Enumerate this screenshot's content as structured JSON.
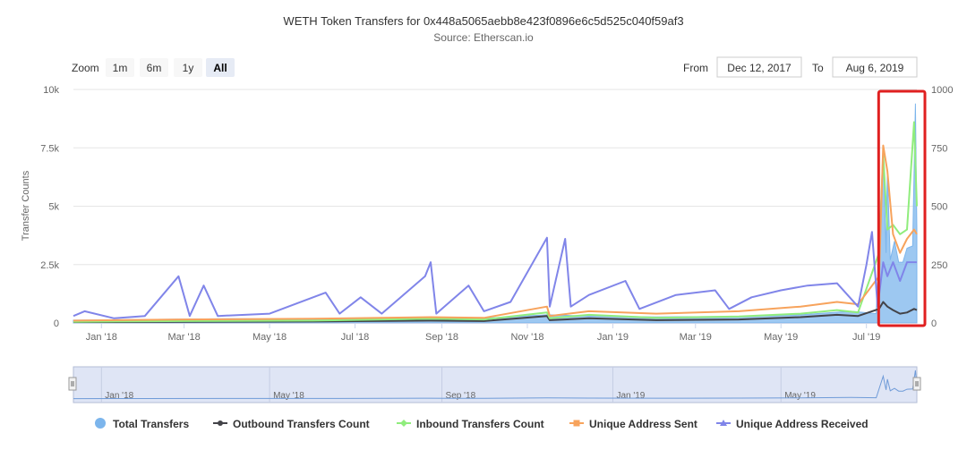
{
  "chart_data": {
    "type": "line",
    "title": "WETH Token Transfers for 0x448a5065aebb8e423f0896e6c5d525c040f59af3",
    "subtitle": "Source: Etherscan.io",
    "ylabel": "Transfer Counts",
    "ylim_left": [
      0,
      10000
    ],
    "ylim_right": [
      0,
      1000
    ],
    "y_ticks_left": [
      "0",
      "2.5k",
      "5k",
      "7.5k",
      "10k"
    ],
    "y_ticks_right": [
      "0",
      "250",
      "500",
      "750",
      "1000"
    ],
    "x_range": [
      "2017-12-12",
      "2019-08-06"
    ],
    "x_ticks": [
      {
        "date": "2018-01-01",
        "label": "Jan '18"
      },
      {
        "date": "2018-03-01",
        "label": "Mar '18"
      },
      {
        "date": "2018-05-01",
        "label": "May '18"
      },
      {
        "date": "2018-07-01",
        "label": "Jul '18"
      },
      {
        "date": "2018-09-01",
        "label": "Sep '18"
      },
      {
        "date": "2018-11-01",
        "label": "Nov '18"
      },
      {
        "date": "2019-01-01",
        "label": "Jan '19"
      },
      {
        "date": "2019-03-01",
        "label": "Mar '19"
      },
      {
        "date": "2019-05-01",
        "label": "May '19"
      },
      {
        "date": "2019-07-01",
        "label": "Jul '19"
      }
    ],
    "grid": true,
    "legend_position": "bottom",
    "series": [
      {
        "name": "Total Transfers",
        "kind": "area",
        "axis": "left",
        "color": "#7cb5ec",
        "points": [
          [
            "2017-12-12",
            120
          ],
          [
            "2018-02-01",
            150
          ],
          [
            "2018-04-01",
            180
          ],
          [
            "2018-06-01",
            170
          ],
          [
            "2018-08-20",
            250
          ],
          [
            "2018-10-01",
            200
          ],
          [
            "2018-11-15",
            350
          ],
          [
            "2018-12-15",
            300
          ],
          [
            "2019-02-01",
            260
          ],
          [
            "2019-04-01",
            280
          ],
          [
            "2019-05-15",
            350
          ],
          [
            "2019-06-20",
            500
          ],
          [
            "2019-07-08",
            400
          ],
          [
            "2019-07-13",
            7500
          ],
          [
            "2019-07-15",
            3000
          ],
          [
            "2019-07-16",
            6500
          ],
          [
            "2019-07-18",
            2700
          ],
          [
            "2019-07-21",
            3500
          ],
          [
            "2019-07-24",
            2600
          ],
          [
            "2019-07-27",
            2600
          ],
          [
            "2019-07-30",
            3200
          ],
          [
            "2019-08-03",
            3300
          ],
          [
            "2019-08-05",
            9400
          ],
          [
            "2019-08-06",
            4000
          ]
        ]
      },
      {
        "name": "Outbound Transfers Count",
        "kind": "line",
        "axis": "right",
        "color": "#434348",
        "points": [
          [
            "2017-12-12",
            3
          ],
          [
            "2018-03-01",
            5
          ],
          [
            "2018-06-01",
            6
          ],
          [
            "2018-08-24",
            10
          ],
          [
            "2018-10-01",
            8
          ],
          [
            "2018-11-15",
            30
          ],
          [
            "2018-11-17",
            12
          ],
          [
            "2018-12-15",
            20
          ],
          [
            "2019-02-01",
            12
          ],
          [
            "2019-04-01",
            15
          ],
          [
            "2019-05-15",
            25
          ],
          [
            "2019-06-10",
            35
          ],
          [
            "2019-06-25",
            30
          ],
          [
            "2019-07-10",
            60
          ],
          [
            "2019-07-13",
            90
          ],
          [
            "2019-07-16",
            70
          ],
          [
            "2019-07-20",
            55
          ],
          [
            "2019-07-25",
            40
          ],
          [
            "2019-07-30",
            45
          ],
          [
            "2019-08-04",
            60
          ],
          [
            "2019-08-06",
            55
          ]
        ]
      },
      {
        "name": "Inbound Transfers Count",
        "kind": "line",
        "axis": "right",
        "color": "#90ed7d",
        "points": [
          [
            "2017-12-12",
            5
          ],
          [
            "2018-03-01",
            8
          ],
          [
            "2018-06-01",
            10
          ],
          [
            "2018-08-24",
            18
          ],
          [
            "2018-10-01",
            15
          ],
          [
            "2018-11-15",
            45
          ],
          [
            "2018-11-17",
            20
          ],
          [
            "2018-12-15",
            35
          ],
          [
            "2019-02-01",
            22
          ],
          [
            "2019-04-01",
            28
          ],
          [
            "2019-05-15",
            40
          ],
          [
            "2019-06-10",
            55
          ],
          [
            "2019-06-25",
            45
          ],
          [
            "2019-07-10",
            300
          ],
          [
            "2019-07-13",
            720
          ],
          [
            "2019-07-16",
            400
          ],
          [
            "2019-07-20",
            420
          ],
          [
            "2019-07-25",
            380
          ],
          [
            "2019-07-30",
            400
          ],
          [
            "2019-08-04",
            860
          ],
          [
            "2019-08-06",
            500
          ]
        ]
      },
      {
        "name": "Unique Address Sent",
        "kind": "line",
        "axis": "right",
        "color": "#f7a35c",
        "points": [
          [
            "2017-12-12",
            10
          ],
          [
            "2018-03-01",
            15
          ],
          [
            "2018-06-01",
            18
          ],
          [
            "2018-08-24",
            25
          ],
          [
            "2018-10-01",
            22
          ],
          [
            "2018-11-15",
            70
          ],
          [
            "2018-11-17",
            30
          ],
          [
            "2018-12-15",
            50
          ],
          [
            "2019-02-01",
            40
          ],
          [
            "2019-04-01",
            50
          ],
          [
            "2019-05-15",
            70
          ],
          [
            "2019-06-10",
            90
          ],
          [
            "2019-06-25",
            80
          ],
          [
            "2019-07-10",
            200
          ],
          [
            "2019-07-13",
            760
          ],
          [
            "2019-07-16",
            650
          ],
          [
            "2019-07-20",
            380
          ],
          [
            "2019-07-25",
            300
          ],
          [
            "2019-07-30",
            360
          ],
          [
            "2019-08-04",
            400
          ],
          [
            "2019-08-06",
            380
          ]
        ]
      },
      {
        "name": "Unique Address Received",
        "kind": "line",
        "axis": "right",
        "color": "#8085e9",
        "points": [
          [
            "2017-12-12",
            30
          ],
          [
            "2017-12-20",
            50
          ],
          [
            "2018-01-10",
            20
          ],
          [
            "2018-02-01",
            30
          ],
          [
            "2018-02-25",
            200
          ],
          [
            "2018-03-05",
            30
          ],
          [
            "2018-03-15",
            160
          ],
          [
            "2018-03-25",
            30
          ],
          [
            "2018-05-01",
            40
          ],
          [
            "2018-06-10",
            130
          ],
          [
            "2018-06-20",
            40
          ],
          [
            "2018-07-05",
            110
          ],
          [
            "2018-07-20",
            40
          ],
          [
            "2018-08-20",
            200
          ],
          [
            "2018-08-24",
            260
          ],
          [
            "2018-08-28",
            40
          ],
          [
            "2018-09-20",
            160
          ],
          [
            "2018-10-01",
            50
          ],
          [
            "2018-10-20",
            90
          ],
          [
            "2018-11-15",
            365
          ],
          [
            "2018-11-17",
            70
          ],
          [
            "2018-11-28",
            360
          ],
          [
            "2018-12-02",
            70
          ],
          [
            "2018-12-15",
            120
          ],
          [
            "2019-01-10",
            180
          ],
          [
            "2019-01-20",
            60
          ],
          [
            "2019-02-15",
            120
          ],
          [
            "2019-03-15",
            140
          ],
          [
            "2019-03-25",
            60
          ],
          [
            "2019-04-10",
            110
          ],
          [
            "2019-05-01",
            140
          ],
          [
            "2019-05-20",
            160
          ],
          [
            "2019-06-10",
            170
          ],
          [
            "2019-06-25",
            70
          ],
          [
            "2019-07-01",
            250
          ],
          [
            "2019-07-05",
            390
          ],
          [
            "2019-07-09",
            70
          ],
          [
            "2019-07-13",
            260
          ],
          [
            "2019-07-16",
            200
          ],
          [
            "2019-07-20",
            260
          ],
          [
            "2019-07-25",
            180
          ],
          [
            "2019-07-30",
            260
          ],
          [
            "2019-08-06",
            260
          ]
        ]
      }
    ],
    "navigator_labels": [
      "Jan '18",
      "May '18",
      "Sep '18",
      "Jan '19",
      "May '19"
    ]
  },
  "controls": {
    "zoom_label": "Zoom",
    "zoom_buttons": [
      "1m",
      "6m",
      "1y",
      "All"
    ],
    "zoom_selected": "All",
    "from_label": "From",
    "from_value": "Dec 12, 2017",
    "to_label": "To",
    "to_value": "Aug 6, 2019"
  },
  "highlight": {
    "color": "#e02020"
  }
}
